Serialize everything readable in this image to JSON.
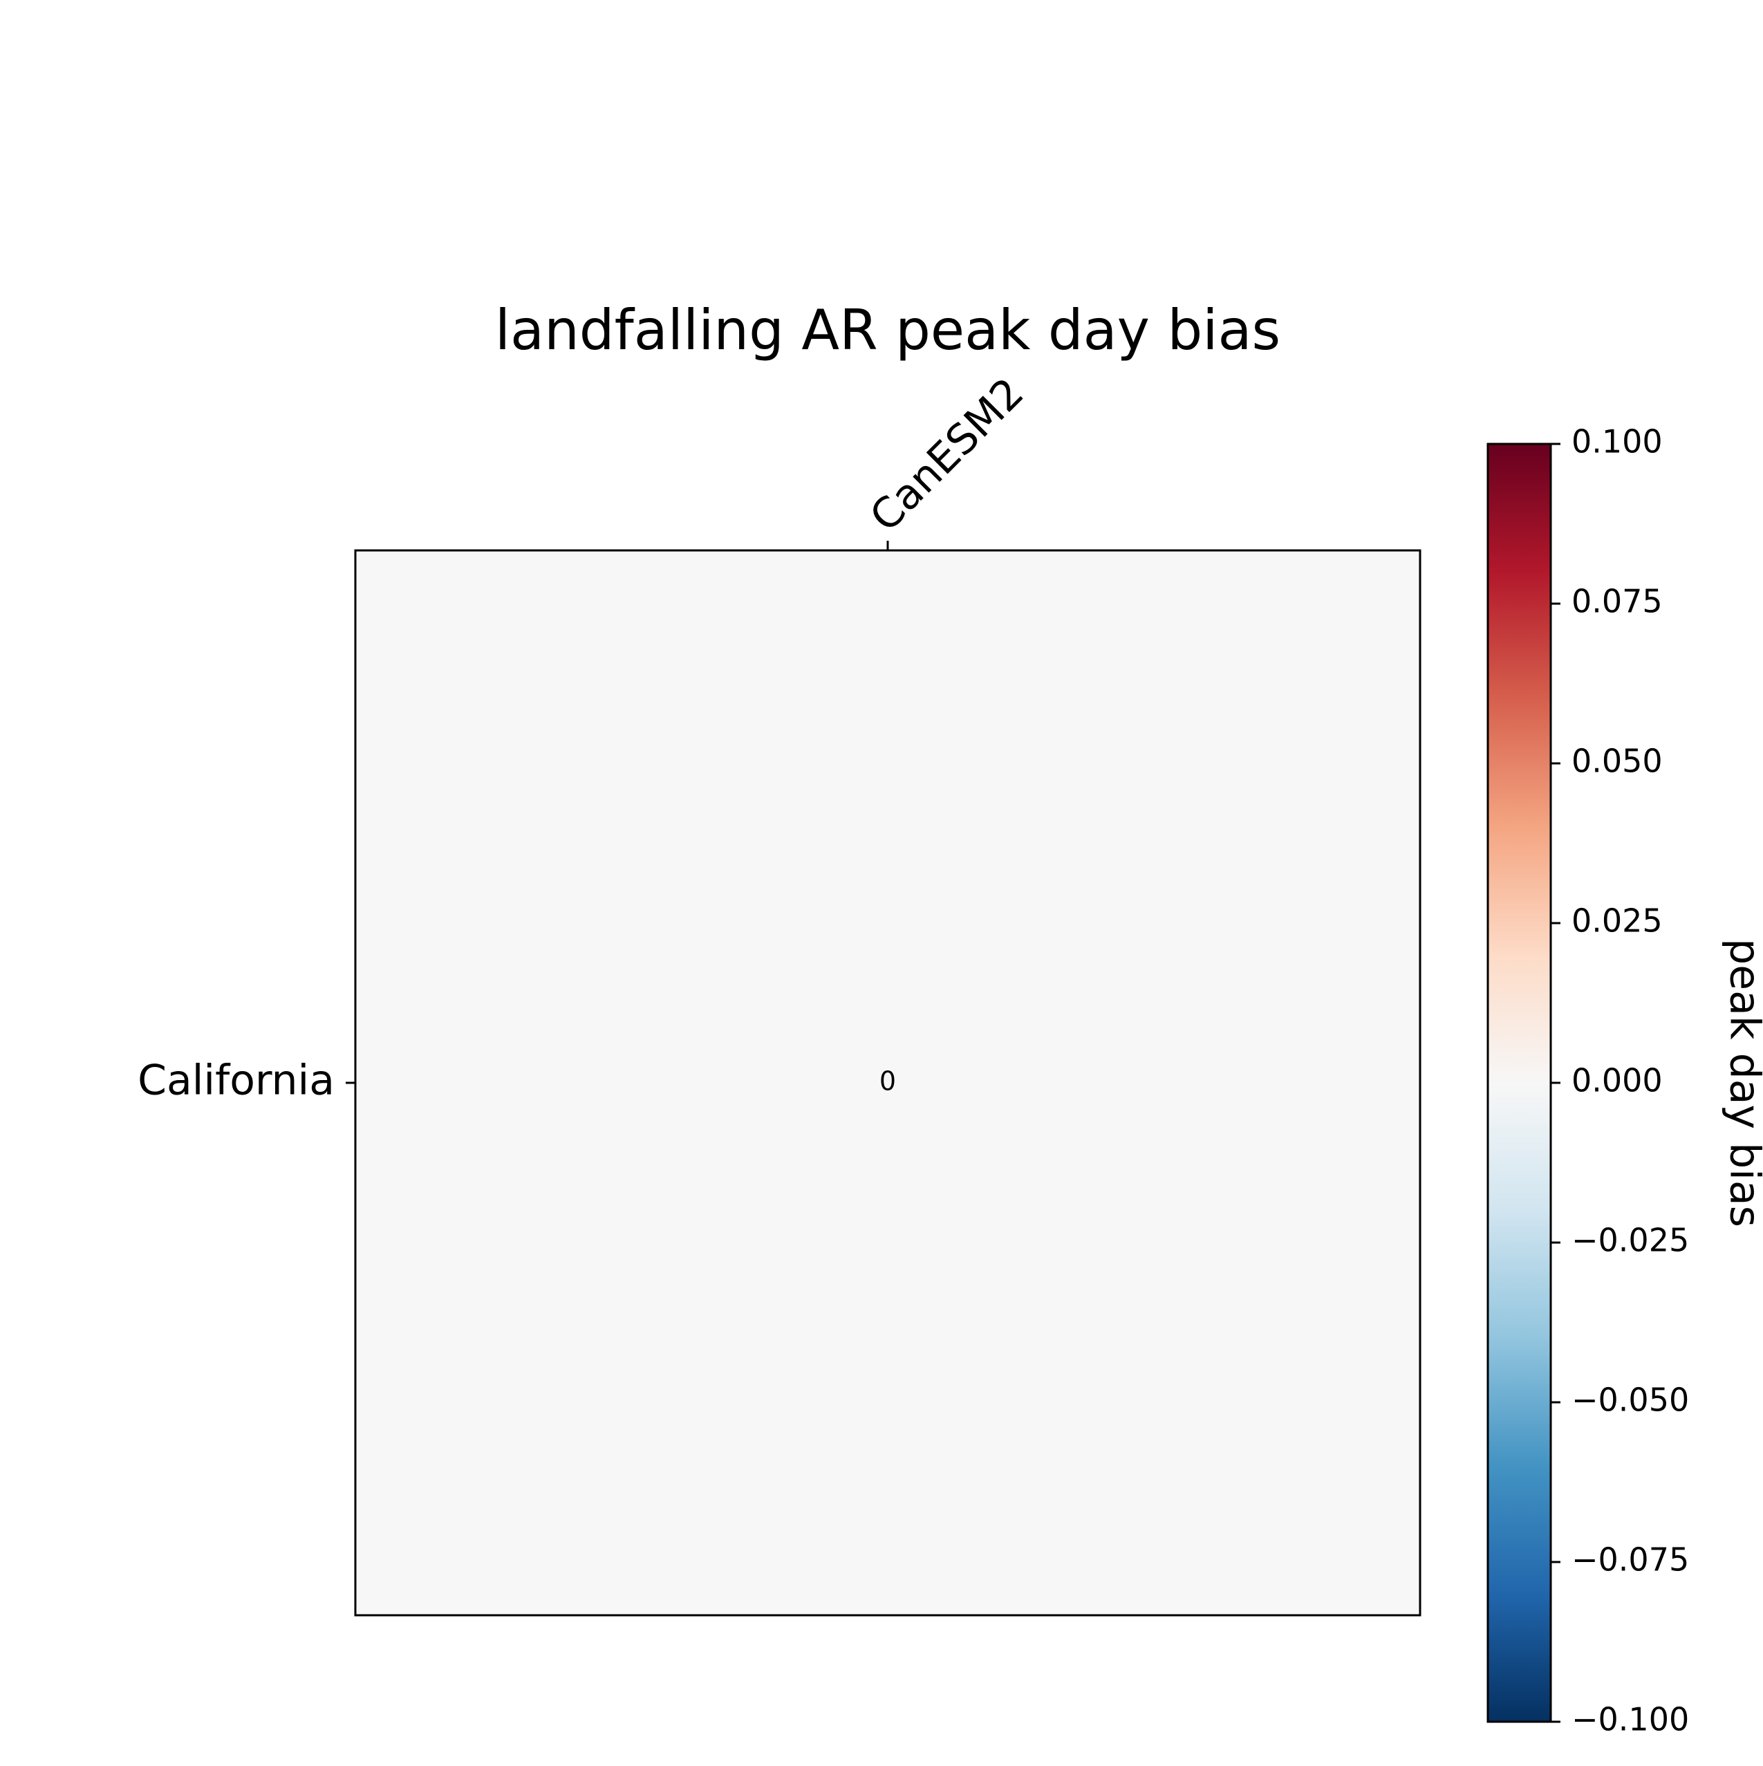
{
  "chart_data": {
    "type": "heatmap",
    "title": "landfalling AR peak day bias",
    "x_categories": [
      "CanESM2"
    ],
    "y_categories": [
      "California"
    ],
    "values": [
      [
        0
      ]
    ],
    "cell_labels": [
      [
        "0"
      ]
    ],
    "colorbar": {
      "label": "peak day bias",
      "colormap": "RdBu_r",
      "vmin": -0.1,
      "vmax": 0.1,
      "ticks": [
        "−0.100",
        "−0.075",
        "−0.050",
        "−0.025",
        "0.000",
        "0.025",
        "0.050",
        "0.075",
        "0.100"
      ],
      "tick_values": [
        -0.1,
        -0.075,
        -0.05,
        -0.025,
        0,
        0.025,
        0.05,
        0.075,
        0.1
      ],
      "color_stops": [
        "#053061",
        "#2166ac",
        "#4393c3",
        "#92c5de",
        "#d1e5f0",
        "#f7f7f7",
        "#fddbc7",
        "#f4a582",
        "#d6604d",
        "#b2182b",
        "#67001f"
      ]
    },
    "x_axis_position": "top",
    "grid": false
  }
}
